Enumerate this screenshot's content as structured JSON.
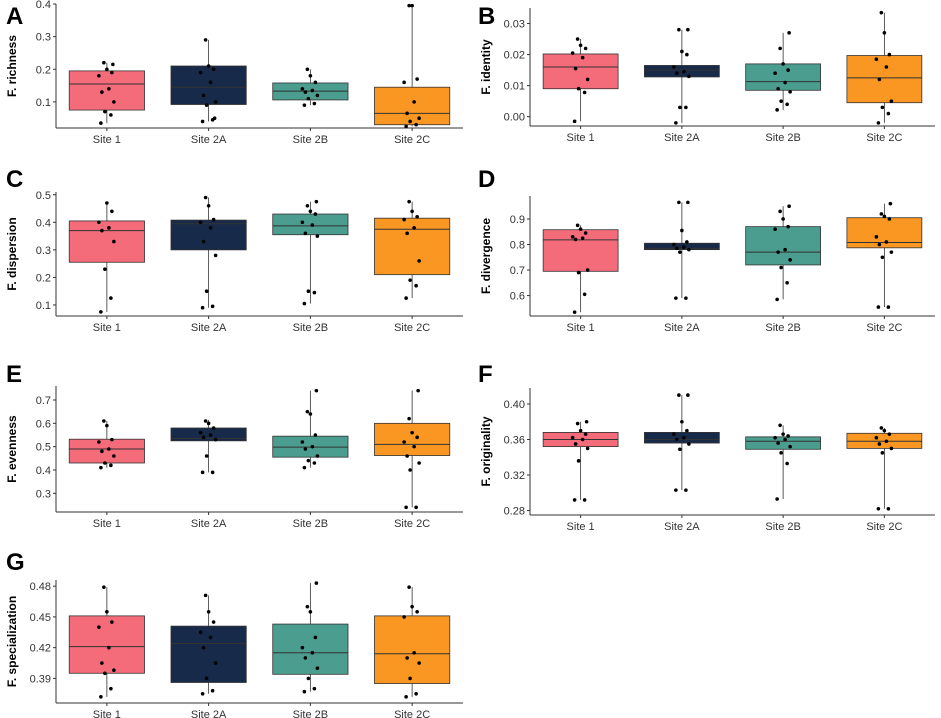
{
  "colors": {
    "Site 1": "#f46b7a",
    "Site 2A": "#182a49",
    "Site 2B": "#4a9d8f",
    "Site 2C": "#f99722"
  },
  "chart_data": [
    {
      "type": "box",
      "panel": "A",
      "ylabel": "F. richness",
      "categories": [
        "Site 1",
        "Site 2A",
        "Site 2B",
        "Site 2C"
      ],
      "ylim": [
        0.02,
        0.4
      ],
      "yticks": [
        "0.1",
        "0.2",
        "0.3",
        "0.4"
      ],
      "ytick_values": [
        0.1,
        0.2,
        0.3,
        0.4
      ],
      "boxes": [
        {
          "q1": 0.075,
          "median": 0.155,
          "q3": 0.195,
          "lower": 0.035,
          "upper": 0.22
        },
        {
          "q1": 0.092,
          "median": 0.145,
          "q3": 0.21,
          "lower": 0.04,
          "upper": 0.29
        },
        {
          "q1": 0.106,
          "median": 0.133,
          "q3": 0.158,
          "lower": 0.09,
          "upper": 0.2
        },
        {
          "q1": 0.03,
          "median": 0.065,
          "q3": 0.145,
          "lower": 0.025,
          "upper": 0.395
        }
      ],
      "points": [
        [
          0.035,
          0.06,
          0.07,
          0.1,
          0.13,
          0.14,
          0.18,
          0.19,
          0.2,
          0.22,
          0.215
        ],
        [
          0.04,
          0.045,
          0.09,
          0.1,
          0.12,
          0.16,
          0.19,
          0.2,
          0.21,
          0.29,
          0.05
        ],
        [
          0.09,
          0.095,
          0.11,
          0.12,
          0.13,
          0.135,
          0.14,
          0.16,
          0.18,
          0.2
        ],
        [
          0.025,
          0.03,
          0.04,
          0.05,
          0.065,
          0.1,
          0.16,
          0.17,
          0.395,
          0.395
        ]
      ]
    },
    {
      "type": "box",
      "panel": "B",
      "ylabel": "F. identity",
      "categories": [
        "Site 1",
        "Site 2A",
        "Site 2B",
        "Site 2C"
      ],
      "ylim": [
        -0.003,
        0.035
      ],
      "yticks": [
        "0.00",
        "0.01",
        "0.02",
        "0.03"
      ],
      "ytick_values": [
        0,
        0.01,
        0.02,
        0.03
      ],
      "boxes": [
        {
          "q1": 0.009,
          "median": 0.016,
          "q3": 0.0202,
          "lower": -0.0015,
          "upper": 0.025
        },
        {
          "q1": 0.0128,
          "median": 0.015,
          "q3": 0.0165,
          "lower": -0.002,
          "upper": 0.028
        },
        {
          "q1": 0.0085,
          "median": 0.0113,
          "q3": 0.017,
          "lower": 0.0022,
          "upper": 0.027
        },
        {
          "q1": 0.0045,
          "median": 0.0125,
          "q3": 0.0197,
          "lower": -0.002,
          "upper": 0.0335
        }
      ],
      "points": [
        [
          -0.0015,
          0.0078,
          0.009,
          0.012,
          0.0155,
          0.019,
          0.0205,
          0.022,
          0.023,
          0.025
        ],
        [
          -0.002,
          0.003,
          0.003,
          0.013,
          0.014,
          0.0145,
          0.016,
          0.02,
          0.021,
          0.028,
          0.028
        ],
        [
          0.0022,
          0.004,
          0.005,
          0.008,
          0.009,
          0.011,
          0.014,
          0.015,
          0.017,
          0.022,
          0.027
        ],
        [
          -0.002,
          0.001,
          0.003,
          0.005,
          0.012,
          0.016,
          0.0185,
          0.02,
          0.027,
          0.0335
        ]
      ]
    },
    {
      "type": "box",
      "panel": "C",
      "ylabel": "F. dispersion",
      "categories": [
        "Site 1",
        "Site 2A",
        "Site 2B",
        "Site 2C"
      ],
      "ylim": [
        0.06,
        0.51
      ],
      "yticks": [
        "0.1",
        "0.2",
        "0.3",
        "0.4",
        "0.5"
      ],
      "ytick_values": [
        0.1,
        0.2,
        0.3,
        0.4,
        0.5
      ],
      "boxes": [
        {
          "q1": 0.255,
          "median": 0.37,
          "q3": 0.405,
          "lower": 0.075,
          "upper": 0.47
        },
        {
          "q1": 0.3,
          "median": 0.395,
          "q3": 0.408,
          "lower": 0.09,
          "upper": 0.49
        },
        {
          "q1": 0.355,
          "median": 0.387,
          "q3": 0.43,
          "lower": 0.105,
          "upper": 0.475
        },
        {
          "q1": 0.21,
          "median": 0.375,
          "q3": 0.415,
          "lower": 0.125,
          "upper": 0.475
        }
      ],
      "points": [
        [
          0.075,
          0.125,
          0.23,
          0.33,
          0.37,
          0.38,
          0.4,
          0.44,
          0.47
        ],
        [
          0.09,
          0.095,
          0.15,
          0.28,
          0.33,
          0.38,
          0.4,
          0.41,
          0.46,
          0.49
        ],
        [
          0.105,
          0.145,
          0.15,
          0.35,
          0.36,
          0.39,
          0.4,
          0.43,
          0.44,
          0.46,
          0.475
        ],
        [
          0.125,
          0.17,
          0.19,
          0.26,
          0.36,
          0.38,
          0.41,
          0.42,
          0.44,
          0.475
        ]
      ]
    },
    {
      "type": "box",
      "panel": "D",
      "ylabel": "F. divergence",
      "categories": [
        "Site 1",
        "Site 2A",
        "Site 2B",
        "Site 2C"
      ],
      "ylim": [
        0.52,
        0.99
      ],
      "yticks": [
        "0.6",
        "0.7",
        "0.8",
        "0.9"
      ],
      "ytick_values": [
        0.6,
        0.7,
        0.8,
        0.9
      ],
      "boxes": [
        {
          "q1": 0.695,
          "median": 0.818,
          "q3": 0.858,
          "lower": 0.535,
          "upper": 0.875
        },
        {
          "q1": 0.78,
          "median": 0.785,
          "q3": 0.805,
          "lower": 0.59,
          "upper": 0.965
        },
        {
          "q1": 0.72,
          "median": 0.77,
          "q3": 0.87,
          "lower": 0.585,
          "upper": 0.95
        },
        {
          "q1": 0.787,
          "median": 0.808,
          "q3": 0.905,
          "lower": 0.555,
          "upper": 0.96
        }
      ],
      "points": [
        [
          0.535,
          0.605,
          0.69,
          0.7,
          0.82,
          0.825,
          0.83,
          0.845,
          0.86,
          0.875
        ],
        [
          0.59,
          0.59,
          0.77,
          0.78,
          0.785,
          0.79,
          0.8,
          0.81,
          0.855,
          0.965,
          0.965
        ],
        [
          0.585,
          0.65,
          0.71,
          0.74,
          0.77,
          0.78,
          0.86,
          0.87,
          0.9,
          0.93,
          0.95
        ],
        [
          0.555,
          0.555,
          0.75,
          0.77,
          0.8,
          0.81,
          0.83,
          0.9,
          0.91,
          0.92,
          0.96
        ]
      ]
    },
    {
      "type": "box",
      "panel": "E",
      "ylabel": "F. evenness",
      "categories": [
        "Site 1",
        "Site 2A",
        "Site 2B",
        "Site 2C"
      ],
      "ylim": [
        0.22,
        0.76
      ],
      "yticks": [
        "0.3",
        "0.4",
        "0.5",
        "0.6",
        "0.7"
      ],
      "ytick_values": [
        0.3,
        0.4,
        0.5,
        0.6,
        0.7
      ],
      "boxes": [
        {
          "q1": 0.43,
          "median": 0.49,
          "q3": 0.532,
          "lower": 0.41,
          "upper": 0.61
        },
        {
          "q1": 0.525,
          "median": 0.535,
          "q3": 0.58,
          "lower": 0.39,
          "upper": 0.615
        },
        {
          "q1": 0.455,
          "median": 0.498,
          "q3": 0.545,
          "lower": 0.41,
          "upper": 0.74
        },
        {
          "q1": 0.462,
          "median": 0.51,
          "q3": 0.6,
          "lower": 0.24,
          "upper": 0.74
        }
      ],
      "points": [
        [
          0.41,
          0.42,
          0.43,
          0.46,
          0.48,
          0.49,
          0.52,
          0.53,
          0.59,
          0.61
        ],
        [
          0.39,
          0.39,
          0.46,
          0.53,
          0.54,
          0.55,
          0.56,
          0.58,
          0.6,
          0.61
        ],
        [
          0.41,
          0.43,
          0.44,
          0.46,
          0.49,
          0.5,
          0.52,
          0.55,
          0.64,
          0.65,
          0.74
        ],
        [
          0.24,
          0.24,
          0.4,
          0.43,
          0.46,
          0.5,
          0.52,
          0.54,
          0.56,
          0.62,
          0.74
        ]
      ]
    },
    {
      "type": "box",
      "panel": "F",
      "ylabel": "F. originality",
      "categories": [
        "Site 1",
        "Site 2A",
        "Site 2B",
        "Site 2C"
      ],
      "ylim": [
        0.275,
        0.418
      ],
      "yticks": [
        "0.28",
        "0.32",
        "0.36",
        "0.40"
      ],
      "ytick_values": [
        0.28,
        0.32,
        0.36,
        0.4
      ],
      "boxes": [
        {
          "q1": 0.352,
          "median": 0.36,
          "q3": 0.368,
          "lower": 0.292,
          "upper": 0.38
        },
        {
          "q1": 0.356,
          "median": 0.36,
          "q3": 0.368,
          "lower": 0.303,
          "upper": 0.41
        },
        {
          "q1": 0.349,
          "median": 0.358,
          "q3": 0.363,
          "lower": 0.293,
          "upper": 0.376
        },
        {
          "q1": 0.35,
          "median": 0.358,
          "q3": 0.367,
          "lower": 0.282,
          "upper": 0.373
        }
      ],
      "points": [
        [
          0.292,
          0.292,
          0.336,
          0.35,
          0.355,
          0.36,
          0.362,
          0.366,
          0.37,
          0.378,
          0.38
        ],
        [
          0.303,
          0.303,
          0.349,
          0.355,
          0.36,
          0.362,
          0.366,
          0.37,
          0.38,
          0.41,
          0.41
        ],
        [
          0.293,
          0.333,
          0.345,
          0.352,
          0.356,
          0.36,
          0.362,
          0.364,
          0.366,
          0.376
        ],
        [
          0.282,
          0.282,
          0.345,
          0.35,
          0.355,
          0.358,
          0.362,
          0.366,
          0.37,
          0.373
        ]
      ]
    },
    {
      "type": "box",
      "panel": "G",
      "ylabel": "F. specialization",
      "categories": [
        "Site 1",
        "Site 2A",
        "Site 2B",
        "Site 2C"
      ],
      "ylim": [
        0.366,
        0.486
      ],
      "yticks": [
        "0.39",
        "0.42",
        "0.45",
        "0.48"
      ],
      "ytick_values": [
        0.39,
        0.42,
        0.45,
        0.48
      ],
      "boxes": [
        {
          "q1": 0.395,
          "median": 0.421,
          "q3": 0.451,
          "lower": 0.372,
          "upper": 0.479
        },
        {
          "q1": 0.386,
          "median": 0.424,
          "q3": 0.441,
          "lower": 0.375,
          "upper": 0.471
        },
        {
          "q1": 0.394,
          "median": 0.415,
          "q3": 0.443,
          "lower": 0.377,
          "upper": 0.483
        },
        {
          "q1": 0.385,
          "median": 0.414,
          "q3": 0.451,
          "lower": 0.372,
          "upper": 0.479
        }
      ],
      "points": [
        [
          0.372,
          0.38,
          0.395,
          0.398,
          0.405,
          0.42,
          0.44,
          0.445,
          0.455,
          0.479
        ],
        [
          0.375,
          0.378,
          0.39,
          0.405,
          0.42,
          0.43,
          0.435,
          0.445,
          0.455,
          0.471
        ],
        [
          0.377,
          0.38,
          0.39,
          0.4,
          0.41,
          0.415,
          0.42,
          0.43,
          0.455,
          0.46,
          0.483
        ],
        [
          0.372,
          0.375,
          0.39,
          0.405,
          0.41,
          0.415,
          0.45,
          0.455,
          0.46,
          0.479
        ]
      ]
    }
  ]
}
